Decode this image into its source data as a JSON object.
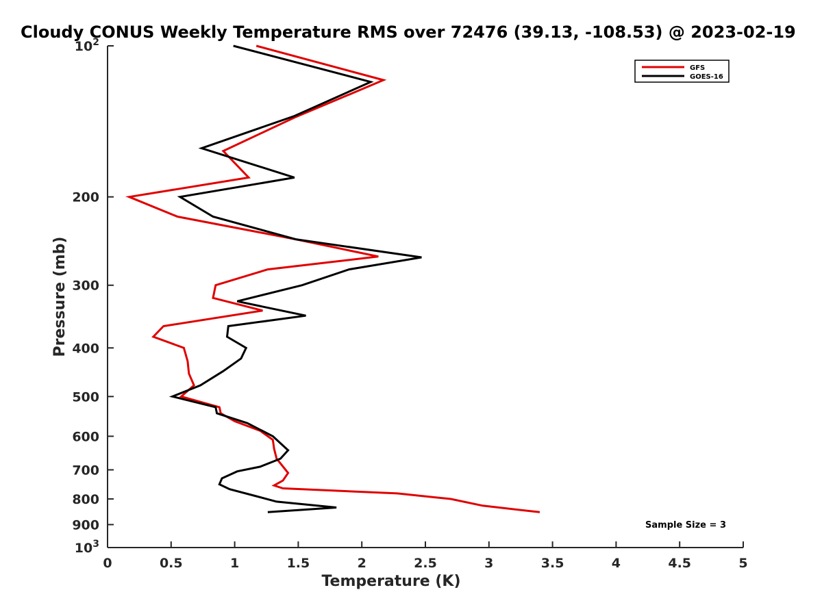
{
  "chart_data": {
    "type": "line",
    "title": "Cloudy CONUS Weekly Temperature RMS over 72476 (39.13, -108.53) @ 2023-02-19",
    "xlabel": "Temperature (K)",
    "ylabel": "Pressure (mb)",
    "xlim": [
      0,
      5
    ],
    "ylim": [
      100,
      1000
    ],
    "y_scale": "log",
    "y_reversed": true,
    "x_ticks": [
      0,
      0.5,
      1,
      1.5,
      2,
      2.5,
      3,
      3.5,
      4,
      4.5,
      5
    ],
    "x_tick_labels": [
      "0",
      "0.5",
      "1",
      "1.5",
      "2",
      "2.5",
      "3",
      "3.5",
      "4",
      "4.5",
      "5"
    ],
    "y_ticks": [
      100,
      200,
      300,
      400,
      500,
      600,
      700,
      800,
      900,
      1000
    ],
    "y_tick_labels": [
      {
        "base": "10",
        "sup": "2"
      },
      {
        "base": "200",
        "sup": ""
      },
      {
        "base": "300",
        "sup": ""
      },
      {
        "base": "400",
        "sup": ""
      },
      {
        "base": "500",
        "sup": ""
      },
      {
        "base": "600",
        "sup": ""
      },
      {
        "base": "700",
        "sup": ""
      },
      {
        "base": "800",
        "sup": ""
      },
      {
        "base": "900",
        "sup": ""
      },
      {
        "base": "10",
        "sup": "3"
      }
    ],
    "grid": false,
    "legend_position": "top-right",
    "annotation": "Sample Size = 3",
    "series": [
      {
        "name": "GFS",
        "color": "#e00000",
        "points": [
          [
            1.17,
            100
          ],
          [
            2.17,
            117
          ],
          [
            1.47,
            139
          ],
          [
            0.91,
            162
          ],
          [
            1.11,
            183
          ],
          [
            0.17,
            200
          ],
          [
            0.55,
            219
          ],
          [
            1.48,
            243
          ],
          [
            2.13,
            263
          ],
          [
            1.26,
            279
          ],
          [
            0.85,
            300
          ],
          [
            0.83,
            318
          ],
          [
            1.22,
            337
          ],
          [
            0.44,
            362
          ],
          [
            0.36,
            380
          ],
          [
            0.6,
            400
          ],
          [
            0.63,
            425
          ],
          [
            0.64,
            450
          ],
          [
            0.68,
            475
          ],
          [
            0.58,
            500
          ],
          [
            0.88,
            525
          ],
          [
            0.89,
            540
          ],
          [
            1.0,
            560
          ],
          [
            1.2,
            585
          ],
          [
            1.3,
            610
          ],
          [
            1.31,
            635
          ],
          [
            1.33,
            665
          ],
          [
            1.42,
            710
          ],
          [
            1.38,
            735
          ],
          [
            1.31,
            752
          ],
          [
            1.38,
            762
          ],
          [
            2.28,
            780
          ],
          [
            2.7,
            800
          ],
          [
            2.95,
            825
          ],
          [
            3.4,
            850
          ]
        ]
      },
      {
        "name": "GOES-16",
        "color": "#000000",
        "points": [
          [
            0.99,
            100
          ],
          [
            2.07,
            118
          ],
          [
            1.47,
            138
          ],
          [
            0.74,
            160
          ],
          [
            1.47,
            183
          ],
          [
            0.57,
            200
          ],
          [
            0.83,
            219
          ],
          [
            1.48,
            243
          ],
          [
            2.47,
            264
          ],
          [
            1.9,
            279
          ],
          [
            1.53,
            300
          ],
          [
            1.02,
            323
          ],
          [
            1.56,
            345
          ],
          [
            0.95,
            362
          ],
          [
            0.94,
            380
          ],
          [
            1.09,
            400
          ],
          [
            1.05,
            420
          ],
          [
            0.91,
            445
          ],
          [
            0.73,
            475
          ],
          [
            0.51,
            500
          ],
          [
            0.85,
            525
          ],
          [
            0.86,
            540
          ],
          [
            1.1,
            565
          ],
          [
            1.3,
            600
          ],
          [
            1.42,
            640
          ],
          [
            1.36,
            665
          ],
          [
            1.2,
            690
          ],
          [
            1.02,
            705
          ],
          [
            0.9,
            728
          ],
          [
            0.88,
            748
          ],
          [
            0.96,
            765
          ],
          [
            1.17,
            790
          ],
          [
            1.33,
            810
          ],
          [
            1.8,
            832
          ],
          [
            1.26,
            850
          ]
        ]
      }
    ]
  }
}
